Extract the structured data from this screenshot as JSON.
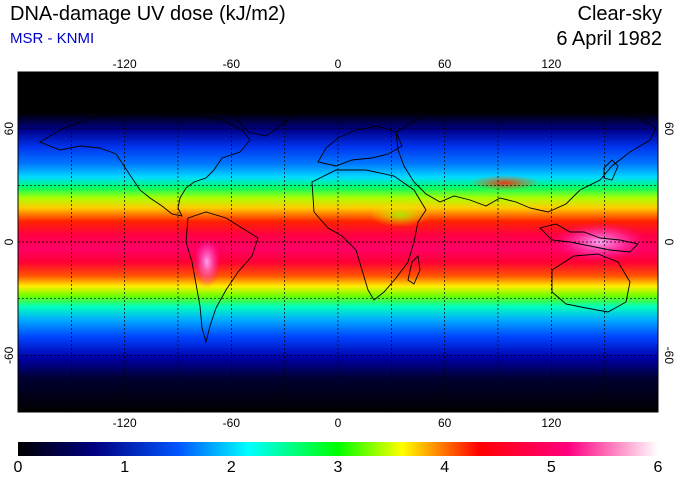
{
  "header": {
    "title": "DNA-damage UV dose (kJ/m2)",
    "subtitle": "MSR - KNMI",
    "condition": "Clear-sky",
    "date": "6 April 1982"
  },
  "map": {
    "lon_ticks": [
      "-120",
      "-60",
      "0",
      "60",
      "120"
    ],
    "lon_values": [
      -120,
      -60,
      0,
      60,
      120
    ],
    "lat_ticks": [
      "60",
      "0",
      "-60"
    ],
    "lat_values": [
      60,
      0,
      -60
    ],
    "grid_lon": [
      -150,
      -120,
      -90,
      -60,
      -30,
      0,
      30,
      60,
      90,
      120,
      150
    ],
    "grid_lat": [
      60,
      30,
      0,
      -30,
      -60
    ],
    "lon_range": [
      -180,
      180
    ],
    "lat_range": [
      -90,
      90
    ]
  },
  "colorbar": {
    "labels": [
      "0",
      "1",
      "2",
      "3",
      "4",
      "5",
      "6"
    ],
    "min": 0,
    "max": 6,
    "colors": [
      "#000000",
      "#000099",
      "#0066ff",
      "#00ffff",
      "#00ff00",
      "#ffff00",
      "#ff0000",
      "#ff0080",
      "#ffffff"
    ]
  },
  "colors": {
    "subtitle": "#0000cc",
    "coastline": "#000000",
    "grid": "#000000"
  }
}
